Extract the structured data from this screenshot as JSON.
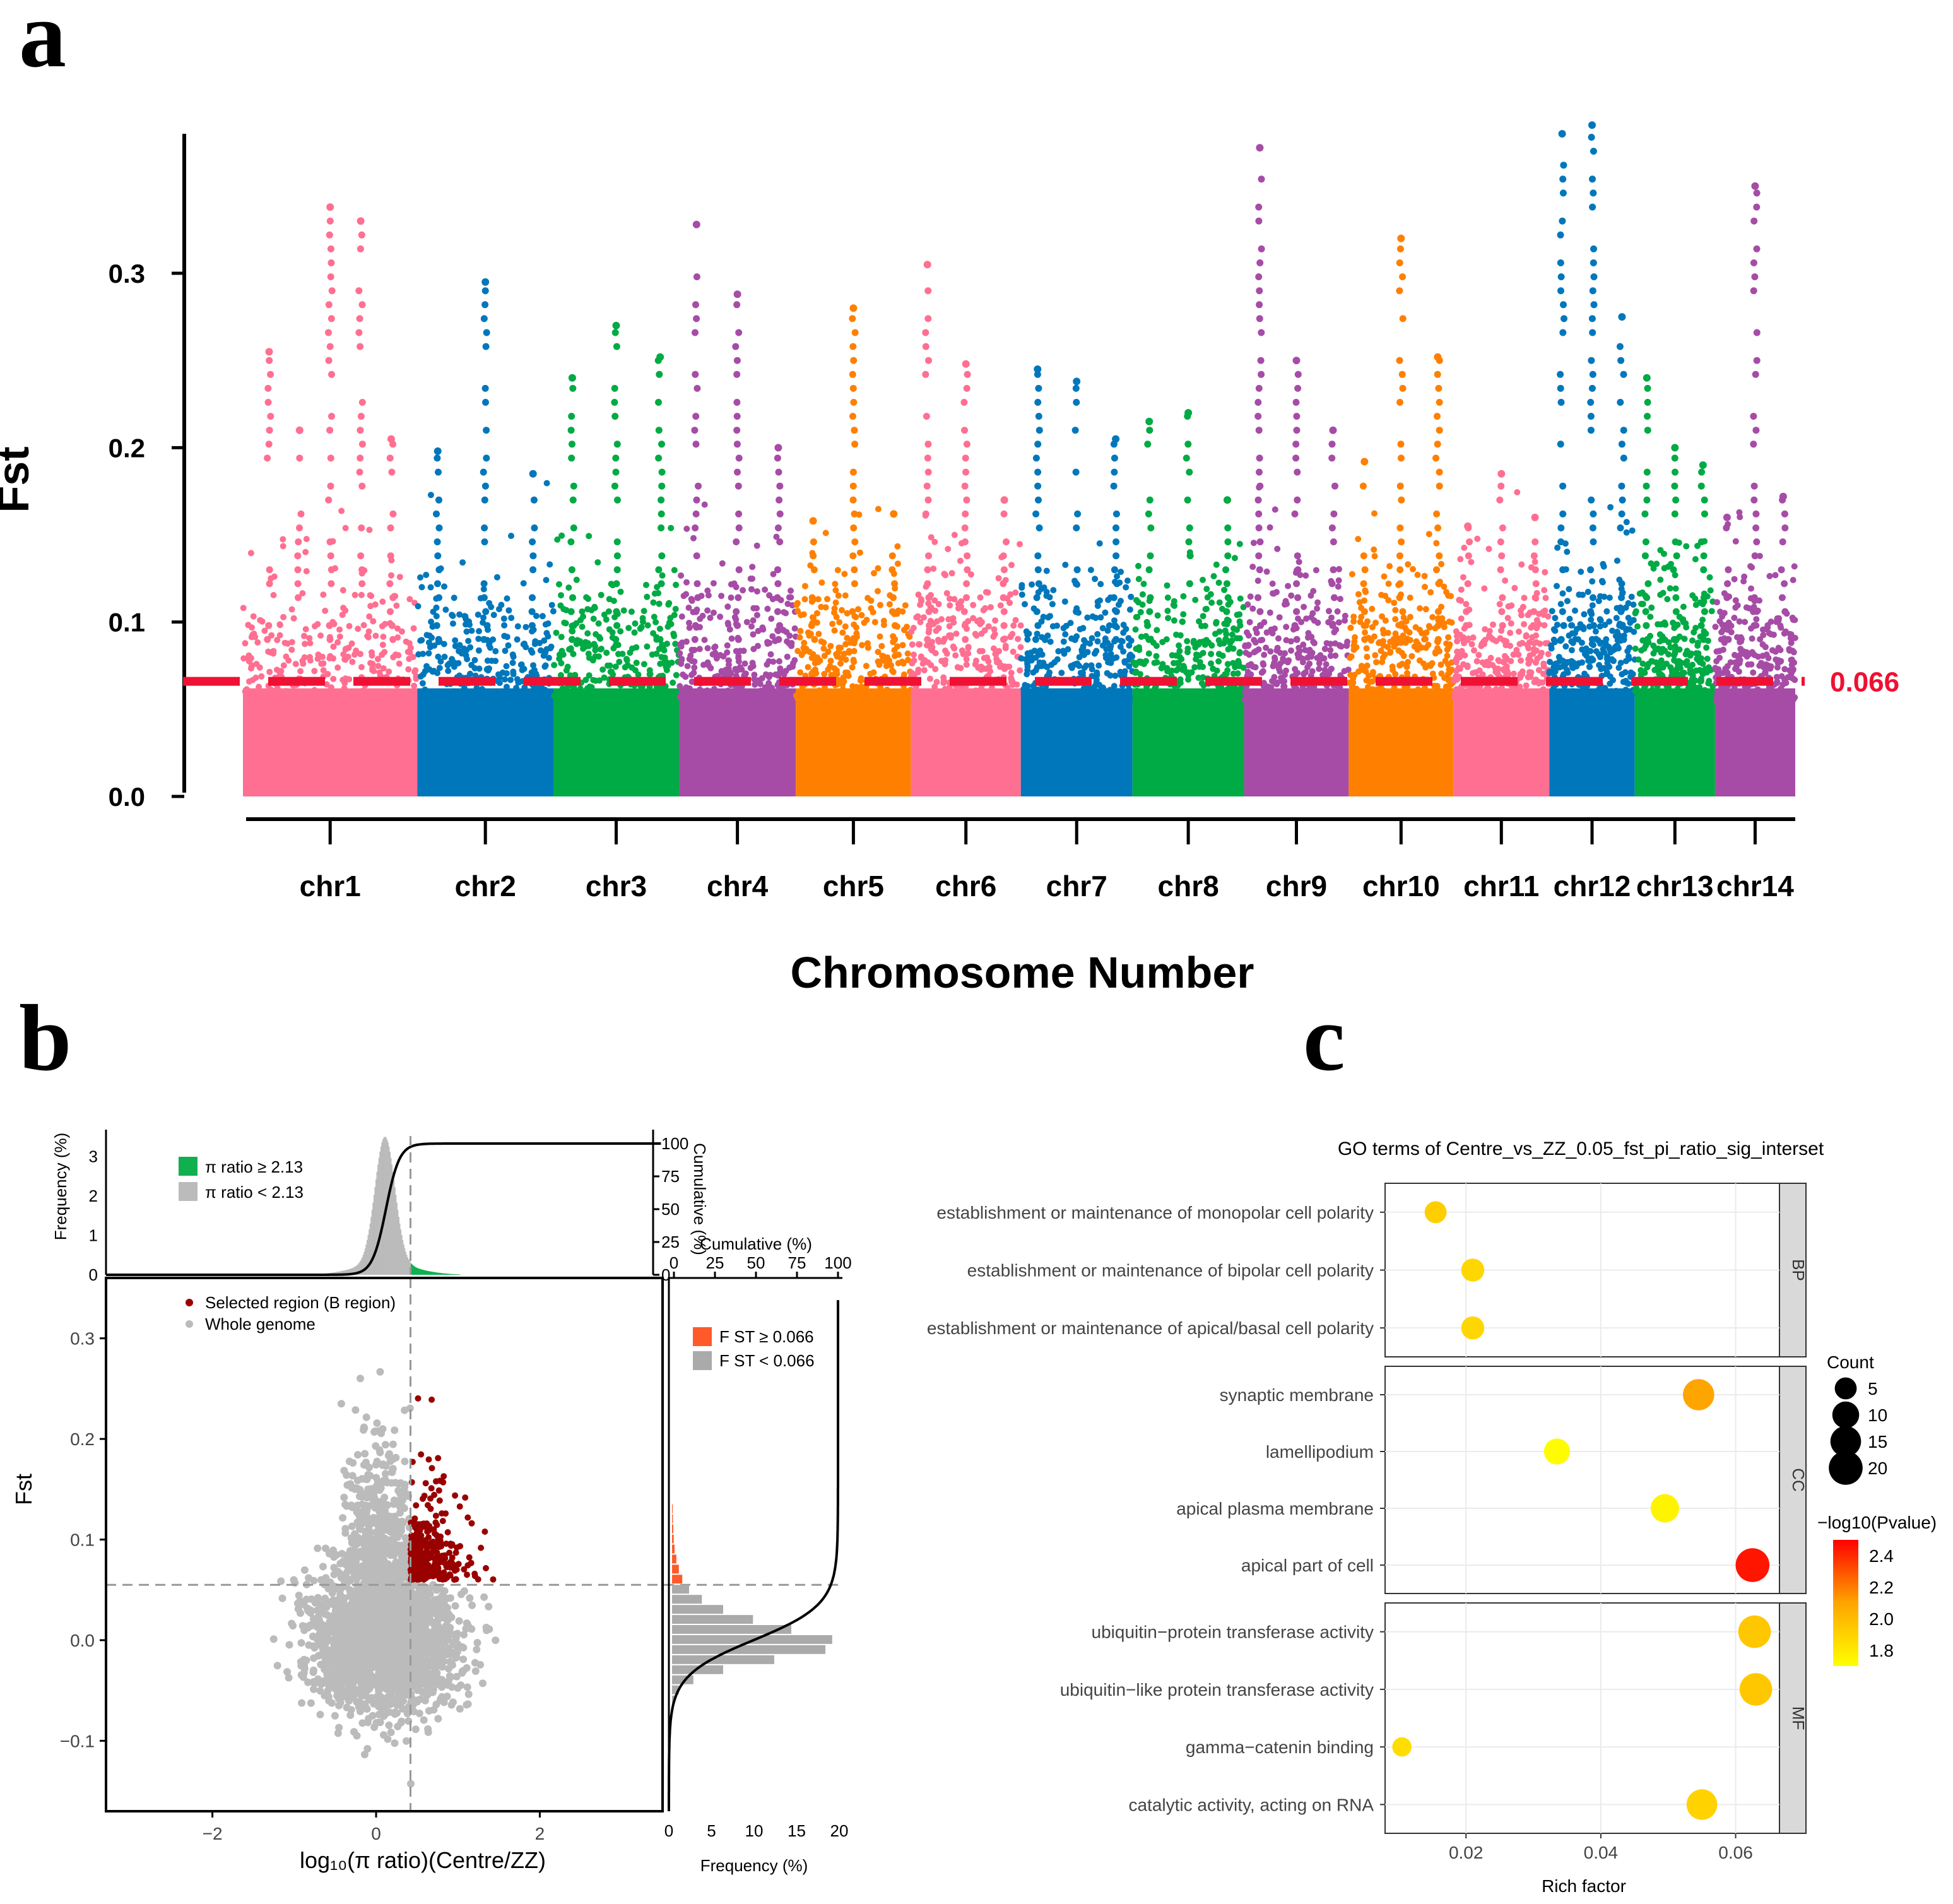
{
  "panel_letters": {
    "a": "a",
    "b": "b",
    "c": "c"
  },
  "colors": {
    "pink": "#ff6f91",
    "blue": "#0077bb",
    "green": "#00aa44",
    "purple": "#a64ca6",
    "orange": "#ff8000",
    "threshold": "#ee1133",
    "grey": "#bbbbbb",
    "darkred": "#990000",
    "hist_grey": "#aaaaaa",
    "hist_orange": "#ff5a2a",
    "hist_green": "#10b050"
  },
  "chart_data": [
    {
      "id": "manhattan",
      "type": "scatter",
      "title": "",
      "xlabel": "Chromosome Number",
      "ylabel": "Fst",
      "ylim": [
        0,
        0.38
      ],
      "yticks": [
        0.0,
        0.1,
        0.2,
        0.3
      ],
      "ytick_labels": [
        "0.0",
        "0.1",
        "0.2",
        "0.3"
      ],
      "threshold": 0.066,
      "threshold_label": "0.066",
      "chromosomes": [
        {
          "name": "chr1",
          "color": "pink",
          "start": 0,
          "end": 1000,
          "peaks": [
            0.255,
            0.21,
            0.338,
            0.33,
            0.205
          ]
        },
        {
          "name": "chr2",
          "color": "blue",
          "start": 1000,
          "end": 1780,
          "peaks": [
            0.198,
            0.295,
            0.185
          ]
        },
        {
          "name": "chr3",
          "color": "green",
          "start": 1780,
          "end": 2500,
          "peaks": [
            0.24,
            0.27,
            0.252
          ]
        },
        {
          "name": "chr4",
          "color": "purple",
          "start": 2500,
          "end": 3170,
          "peaks": [
            0.328,
            0.288,
            0.2
          ]
        },
        {
          "name": "chr5",
          "color": "orange",
          "start": 3170,
          "end": 3830,
          "peaks": [
            0.158,
            0.28,
            0.162
          ]
        },
        {
          "name": "chr6",
          "color": "pink",
          "start": 3830,
          "end": 4460,
          "peaks": [
            0.305,
            0.248,
            0.17
          ]
        },
        {
          "name": "chr7",
          "color": "blue",
          "start": 4460,
          "end": 5100,
          "peaks": [
            0.245,
            0.238,
            0.205
          ]
        },
        {
          "name": "chr8",
          "color": "green",
          "start": 5100,
          "end": 5740,
          "peaks": [
            0.215,
            0.22,
            0.17
          ]
        },
        {
          "name": "chr9",
          "color": "purple",
          "start": 5740,
          "end": 6340,
          "peaks": [
            0.372,
            0.25,
            0.21
          ]
        },
        {
          "name": "chr10",
          "color": "orange",
          "start": 6340,
          "end": 6940,
          "peaks": [
            0.192,
            0.32,
            0.252
          ]
        },
        {
          "name": "chr11",
          "color": "pink",
          "start": 6940,
          "end": 7490,
          "peaks": [
            0.155,
            0.185,
            0.16
          ]
        },
        {
          "name": "chr12",
          "color": "blue",
          "start": 7490,
          "end": 7980,
          "peaks": [
            0.38,
            0.385,
            0.275
          ]
        },
        {
          "name": "chr13",
          "color": "green",
          "start": 7980,
          "end": 8440,
          "peaks": [
            0.24,
            0.2,
            0.19
          ]
        },
        {
          "name": "chr14",
          "color": "purple",
          "start": 8440,
          "end": 8900,
          "peaks": [
            0.16,
            0.35,
            0.172
          ]
        }
      ]
    },
    {
      "id": "joint",
      "type": "scatter",
      "xlabel": "log₁₀(π ratio)(Centre/ZZ)",
      "ylabel": "Fst",
      "xlim": [
        -3.3,
        3.5
      ],
      "ylim": [
        -0.17,
        0.36
      ],
      "xticks": [
        -2,
        0,
        2
      ],
      "xtick_labels": [
        "−2",
        "0",
        "2"
      ],
      "yticks": [
        -0.1,
        0.0,
        0.1,
        0.2,
        0.3
      ],
      "ytick_labels": [
        "−0.1",
        "0.0",
        "0.1",
        "0.2",
        "0.3"
      ],
      "vline_x": 0.42,
      "hline_y": 0.055,
      "legend": [
        {
          "label": "Selected region (B region)",
          "color": "darkred"
        },
        {
          "label": "Whole genome",
          "color": "grey"
        }
      ],
      "top_hist": {
        "ylabel": "Frequency (%)",
        "yticks": [
          0,
          1,
          2,
          3
        ],
        "ytick_labels": [
          "0",
          "1",
          "2",
          "3"
        ],
        "y2label": "Cumulative (%)",
        "y2ticks": [
          0,
          25,
          50,
          75,
          100
        ],
        "y2tick_labels": [
          "0",
          "25",
          "50",
          "75",
          "100"
        ],
        "legend": [
          {
            "label": "π ratio ≥ 2.13",
            "color": "hist_green"
          },
          {
            "label": "π ratio < 2.13",
            "color": "grey"
          }
        ]
      },
      "right_hist": {
        "xlabel": "Frequency (%)",
        "xticks": [
          0,
          5,
          10,
          15,
          20
        ],
        "xtick_labels": [
          "0",
          "5",
          "10",
          "15",
          "20"
        ],
        "x2label": "Cumulative (%)",
        "x2ticks": [
          0,
          25,
          50,
          75,
          100
        ],
        "x2tick_labels": [
          "0",
          "25",
          "50",
          "75",
          "100"
        ],
        "legend": [
          {
            "label": "F ST ≥ 0.066",
            "color": "hist_orange"
          },
          {
            "label": "F ST < 0.066",
            "color": "hist_grey"
          }
        ],
        "bins": [
          {
            "y": 0.05,
            "v": 2.0
          },
          {
            "y": 0.04,
            "v": 3.5
          },
          {
            "y": 0.03,
            "v": 6.0
          },
          {
            "y": 0.02,
            "v": 9.5
          },
          {
            "y": 0.01,
            "v": 14.0
          },
          {
            "y": 0.0,
            "v": 18.8
          },
          {
            "y": -0.01,
            "v": 18.0
          },
          {
            "y": -0.02,
            "v": 12.0
          },
          {
            "y": -0.03,
            "v": 6.0
          },
          {
            "y": -0.04,
            "v": 2.5
          },
          {
            "y": -0.05,
            "v": 0.8
          },
          {
            "y": -0.06,
            "v": 0.3
          },
          {
            "y": 0.06,
            "v": 1.2
          },
          {
            "y": 0.07,
            "v": 0.8
          },
          {
            "y": 0.08,
            "v": 0.5
          },
          {
            "y": 0.09,
            "v": 0.3
          },
          {
            "y": 0.1,
            "v": 0.2
          },
          {
            "y": 0.11,
            "v": 0.15
          },
          {
            "y": 0.12,
            "v": 0.1
          },
          {
            "y": 0.13,
            "v": 0.08
          }
        ]
      }
    },
    {
      "id": "go_dotplot",
      "type": "scatter",
      "title": "GO terms of Centre_vs_ZZ_0.05_fst_pi_ratio_sig_interset",
      "xlabel": "Rich factor",
      "xlim": [
        0.008,
        0.0665
      ],
      "xticks": [
        0.02,
        0.04,
        0.06
      ],
      "xtick_labels": [
        "0.02",
        "0.04",
        "0.06"
      ],
      "size_legend": {
        "title": "Count",
        "values": [
          5,
          10,
          15,
          20
        ],
        "labels": [
          "5",
          "10",
          "15",
          "20"
        ]
      },
      "color_legend": {
        "title": "−log10(Pvalue)",
        "min": 1.7,
        "max": 2.5,
        "ticks": [
          1.8,
          2.0,
          2.2,
          2.4
        ],
        "tick_labels": [
          "1.8",
          "2.0",
          "2.2",
          "2.4"
        ]
      },
      "groups": [
        {
          "name": "BP",
          "terms": [
            {
              "term": "establishment or maintenance of monopolar cell polarity",
              "rich": 0.0155,
              "count": 5,
              "logp": 1.92
            },
            {
              "term": "establishment or maintenance of bipolar cell polarity",
              "rich": 0.021,
              "count": 6,
              "logp": 1.88
            },
            {
              "term": "establishment or maintenance of apical/basal cell polarity",
              "rich": 0.021,
              "count": 6,
              "logp": 1.88
            }
          ]
        },
        {
          "name": "CC",
          "terms": [
            {
              "term": "synaptic membrane",
              "rich": 0.0545,
              "count": 16,
              "logp": 2.1
            },
            {
              "term": "lamellipodium",
              "rich": 0.0335,
              "count": 9,
              "logp": 1.72
            },
            {
              "term": "apical plasma membrane",
              "rich": 0.0495,
              "count": 12,
              "logp": 1.75
            },
            {
              "term": "apical part of cell",
              "rich": 0.0625,
              "count": 20,
              "logp": 2.45
            }
          ]
        },
        {
          "name": "MF",
          "terms": [
            {
              "term": "ubiquitin−protein transferase activity",
              "rich": 0.0628,
              "count": 18,
              "logp": 1.95
            },
            {
              "term": "ubiquitin−like protein transferase activity",
              "rich": 0.063,
              "count": 18,
              "logp": 1.95
            },
            {
              "term": "gamma−catenin binding",
              "rich": 0.0105,
              "count": 3,
              "logp": 1.85
            },
            {
              "term": "catalytic activity, acting on RNA",
              "rich": 0.055,
              "count": 15,
              "logp": 1.9
            }
          ]
        }
      ]
    }
  ]
}
